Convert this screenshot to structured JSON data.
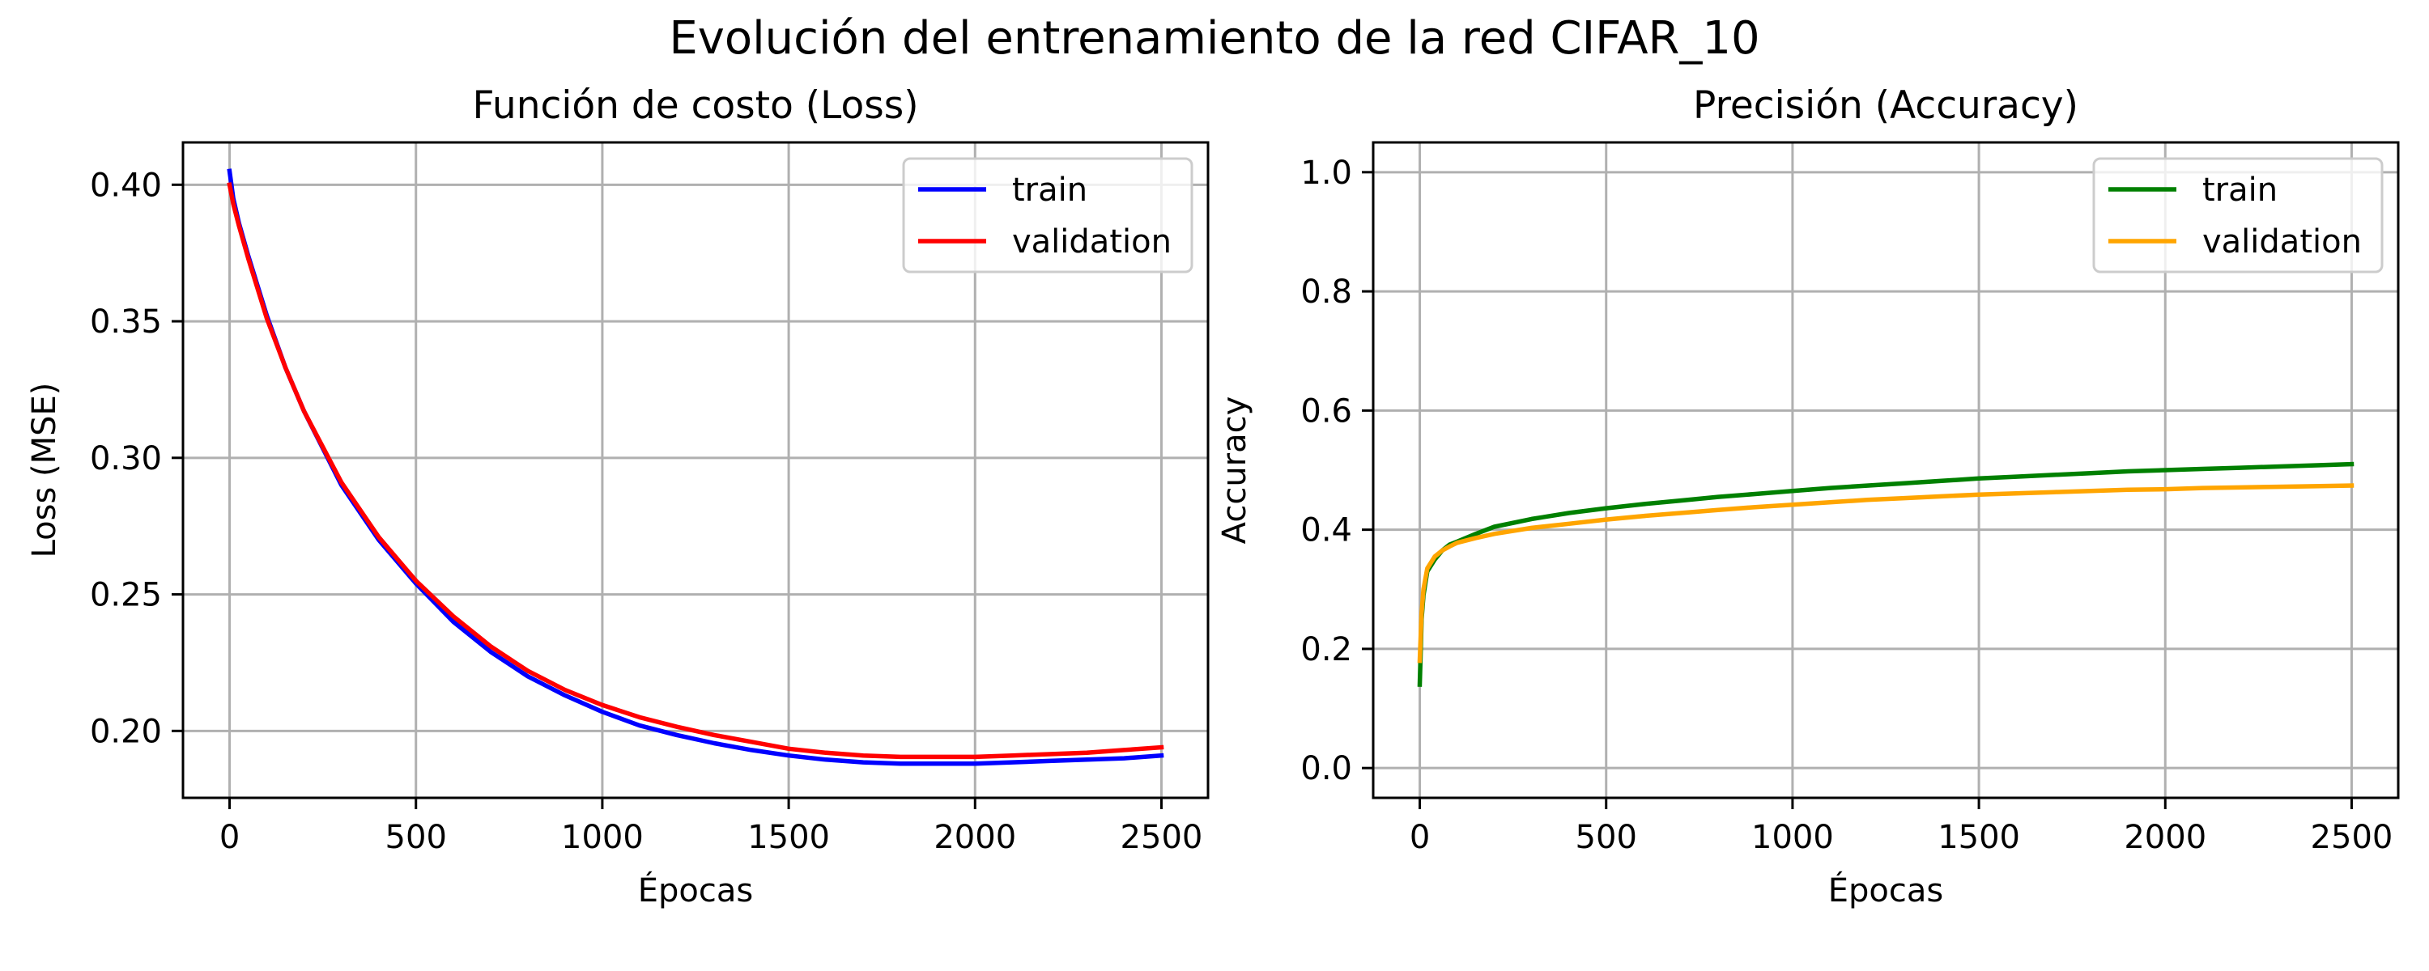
{
  "figure": {
    "suptitle": "Evolución del entrenamiento de la red CIFAR_10"
  },
  "chart_data": [
    {
      "type": "line",
      "title": "Función de costo (Loss)",
      "xlabel": "Épocas",
      "ylabel": "Loss (MSE)",
      "xlim": [
        -125,
        2625
      ],
      "ylim": [
        0.1755,
        0.4155
      ],
      "xticks": [
        0,
        500,
        1000,
        1500,
        2000,
        2500
      ],
      "xtick_labels": [
        "0",
        "500",
        "1000",
        "1500",
        "2000",
        "2500"
      ],
      "yticks": [
        0.2,
        0.25,
        0.3,
        0.35,
        0.4
      ],
      "ytick_labels": [
        "0.20",
        "0.25",
        "0.30",
        "0.35",
        "0.40"
      ],
      "grid": true,
      "legend": "upper right",
      "series": [
        {
          "name": "train",
          "color": "#0000ff",
          "x": [
            0,
            10,
            25,
            50,
            100,
            150,
            200,
            300,
            400,
            500,
            600,
            700,
            800,
            900,
            1000,
            1100,
            1200,
            1300,
            1400,
            1500,
            1600,
            1700,
            1800,
            1900,
            2000,
            2100,
            2200,
            2300,
            2400,
            2500
          ],
          "y": [
            0.405,
            0.395,
            0.386,
            0.374,
            0.352,
            0.333,
            0.317,
            0.29,
            0.27,
            0.254,
            0.24,
            0.229,
            0.22,
            0.213,
            0.207,
            0.202,
            0.1985,
            0.1955,
            0.193,
            0.191,
            0.1895,
            0.1885,
            0.188,
            0.188,
            0.188,
            0.1885,
            0.189,
            0.1895,
            0.19,
            0.191
          ]
        },
        {
          "name": "validation",
          "color": "#ff0000",
          "x": [
            0,
            10,
            25,
            50,
            100,
            150,
            200,
            300,
            400,
            500,
            600,
            700,
            800,
            900,
            1000,
            1100,
            1200,
            1300,
            1400,
            1500,
            1600,
            1700,
            1800,
            1900,
            2000,
            2100,
            2200,
            2300,
            2400,
            2500
          ],
          "y": [
            0.4,
            0.393,
            0.385,
            0.373,
            0.351,
            0.333,
            0.317,
            0.291,
            0.271,
            0.255,
            0.242,
            0.231,
            0.222,
            0.215,
            0.2095,
            0.205,
            0.2015,
            0.1985,
            0.196,
            0.1935,
            0.192,
            0.191,
            0.1905,
            0.1905,
            0.1905,
            0.191,
            0.1915,
            0.192,
            0.193,
            0.194
          ]
        }
      ]
    },
    {
      "type": "line",
      "title": "Precisión (Accuracy)",
      "xlabel": "Épocas",
      "ylabel": "Accuracy",
      "xlim": [
        -125,
        2625
      ],
      "ylim": [
        -0.05,
        1.05
      ],
      "xticks": [
        0,
        500,
        1000,
        1500,
        2000,
        2500
      ],
      "xtick_labels": [
        "0",
        "500",
        "1000",
        "1500",
        "2000",
        "2500"
      ],
      "yticks": [
        0.0,
        0.2,
        0.4,
        0.6,
        0.8,
        1.0
      ],
      "ytick_labels": [
        "0.0",
        "0.2",
        "0.4",
        "0.6",
        "0.8",
        "1.0"
      ],
      "grid": true,
      "legend": "upper right",
      "series": [
        {
          "name": "train",
          "color": "#008000",
          "x": [
            0,
            5,
            10,
            20,
            40,
            60,
            80,
            100,
            150,
            200,
            300,
            400,
            500,
            600,
            700,
            800,
            900,
            1000,
            1100,
            1200,
            1300,
            1400,
            1500,
            1600,
            1700,
            1800,
            1900,
            2000,
            2100,
            2200,
            2300,
            2400,
            2500
          ],
          "y": [
            0.14,
            0.25,
            0.29,
            0.33,
            0.35,
            0.365,
            0.375,
            0.38,
            0.393,
            0.405,
            0.418,
            0.428,
            0.436,
            0.443,
            0.449,
            0.455,
            0.46,
            0.465,
            0.47,
            0.474,
            0.478,
            0.482,
            0.486,
            0.489,
            0.492,
            0.495,
            0.498,
            0.5,
            0.502,
            0.504,
            0.506,
            0.508,
            0.51
          ]
        },
        {
          "name": "validation",
          "color": "#ffa500",
          "x": [
            0,
            5,
            10,
            20,
            40,
            60,
            80,
            100,
            150,
            200,
            300,
            400,
            500,
            600,
            700,
            800,
            900,
            1000,
            1100,
            1200,
            1300,
            1400,
            1500,
            1600,
            1700,
            1800,
            1900,
            2000,
            2100,
            2200,
            2300,
            2400,
            2500
          ],
          "y": [
            0.18,
            0.26,
            0.3,
            0.335,
            0.355,
            0.365,
            0.372,
            0.378,
            0.386,
            0.393,
            0.403,
            0.41,
            0.417,
            0.423,
            0.428,
            0.433,
            0.438,
            0.442,
            0.446,
            0.45,
            0.453,
            0.456,
            0.459,
            0.461,
            0.463,
            0.465,
            0.467,
            0.468,
            0.47,
            0.471,
            0.472,
            0.473,
            0.474
          ]
        }
      ]
    }
  ]
}
